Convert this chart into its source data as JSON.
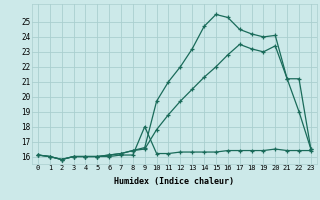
{
  "xlabel": "Humidex (Indice chaleur)",
  "background_color": "#cce9e9",
  "grid_color": "#aacfcf",
  "line_color": "#1a6b5a",
  "xlim": [
    -0.5,
    23.5
  ],
  "ylim": [
    15.5,
    26.2
  ],
  "x_ticks": [
    0,
    1,
    2,
    3,
    4,
    5,
    6,
    7,
    8,
    9,
    10,
    11,
    12,
    13,
    14,
    15,
    16,
    17,
    18,
    19,
    20,
    21,
    22,
    23
  ],
  "y_ticks": [
    16,
    17,
    18,
    19,
    20,
    21,
    22,
    23,
    24,
    25
  ],
  "series1_x": [
    0,
    1,
    2,
    3,
    4,
    5,
    6,
    7,
    8,
    9,
    10,
    11,
    12,
    13,
    14,
    15,
    16,
    17,
    18,
    19,
    20,
    21,
    22,
    23
  ],
  "series1_y": [
    16.1,
    16.0,
    15.8,
    16.0,
    16.0,
    16.0,
    16.0,
    16.1,
    16.1,
    18.0,
    16.2,
    16.2,
    16.3,
    16.3,
    16.3,
    16.3,
    16.4,
    16.4,
    16.4,
    16.4,
    16.5,
    16.4,
    16.4,
    16.4
  ],
  "series2_x": [
    0,
    1,
    2,
    3,
    4,
    5,
    6,
    7,
    8,
    9,
    10,
    11,
    12,
    13,
    14,
    15,
    16,
    17,
    18,
    19,
    20,
    21,
    22,
    23
  ],
  "series2_y": [
    16.1,
    16.0,
    15.8,
    16.0,
    16.0,
    16.0,
    16.1,
    16.2,
    16.4,
    16.5,
    17.8,
    18.8,
    19.7,
    20.5,
    21.3,
    22.0,
    22.8,
    23.5,
    23.2,
    23.0,
    23.4,
    21.2,
    21.2,
    16.5
  ],
  "series3_x": [
    0,
    1,
    2,
    3,
    4,
    5,
    6,
    7,
    8,
    9,
    10,
    11,
    12,
    13,
    14,
    15,
    16,
    17,
    18,
    19,
    20,
    21,
    22,
    23
  ],
  "series3_y": [
    16.1,
    16.0,
    15.8,
    16.0,
    16.0,
    16.0,
    16.1,
    16.2,
    16.4,
    16.6,
    19.7,
    21.0,
    22.0,
    23.2,
    24.7,
    25.5,
    25.3,
    24.5,
    24.2,
    24.0,
    24.1,
    21.2,
    19.0,
    16.5
  ]
}
